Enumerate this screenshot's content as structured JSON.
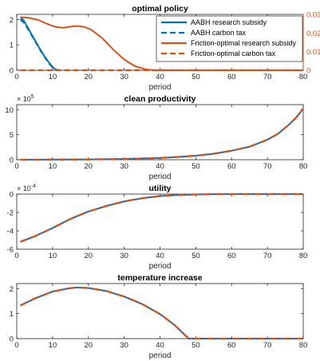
{
  "colors": {
    "blue": "#0072BD",
    "orange": "#D95319",
    "axis": "#262626"
  },
  "chart_data": [
    {
      "type": "line",
      "title": "optimal policy",
      "xlabel": "period",
      "xlim": [
        0,
        80
      ],
      "xticks": [
        "0",
        "10",
        "20",
        "30",
        "40",
        "50",
        "60",
        "70",
        "80"
      ],
      "ylim": [
        0,
        2.2
      ],
      "yticks": [
        "0",
        "1",
        "2"
      ],
      "y2lim": [
        0,
        0.03
      ],
      "y2ticks": [
        "0",
        "0.01",
        "0.02",
        "0.03"
      ],
      "legend": "top-right",
      "series": [
        {
          "name": "AABH research subsidy",
          "axis": "left",
          "style": "solid",
          "color": "#0072BD",
          "x": [
            1,
            2,
            3,
            4,
            5,
            6,
            7,
            8,
            9,
            10,
            11,
            12
          ],
          "y": [
            2.1,
            1.95,
            1.7,
            1.45,
            1.2,
            0.95,
            0.72,
            0.5,
            0.3,
            0.13,
            0.02,
            0
          ]
        },
        {
          "name": "AABH carbon tax",
          "axis": "left",
          "style": "dashed",
          "color": "#0072BD",
          "x": [
            1,
            2,
            3,
            4,
            5,
            6,
            7,
            8,
            9,
            10,
            11,
            12
          ],
          "y": [
            2.0,
            1.88,
            1.66,
            1.42,
            1.18,
            0.94,
            0.7,
            0.48,
            0.28,
            0.12,
            0.02,
            0
          ]
        },
        {
          "name": "Friction-optimal research subsidy",
          "axis": "right",
          "style": "solid",
          "color": "#D95319",
          "x": [
            1,
            3,
            6,
            9,
            11,
            13,
            15,
            17,
            19,
            21,
            24,
            27,
            30,
            33,
            36,
            38,
            40,
            50,
            60,
            70,
            80
          ],
          "y": [
            0.0285,
            0.0283,
            0.027,
            0.0245,
            0.0232,
            0.0228,
            0.0234,
            0.0238,
            0.0232,
            0.0215,
            0.017,
            0.011,
            0.0058,
            0.0022,
            0.0005,
            0.0001,
            0,
            0,
            0,
            0,
            0
          ]
        },
        {
          "name": "Friction-optimal carbon tax",
          "axis": "left",
          "style": "dashed",
          "color": "#D95319",
          "x": [
            1,
            80
          ],
          "y": [
            0,
            0
          ]
        }
      ]
    },
    {
      "type": "line",
      "title": "clean productivity",
      "xlabel": "period",
      "xlim": [
        0,
        80
      ],
      "xticks": [
        "0",
        "10",
        "20",
        "30",
        "40",
        "50",
        "60",
        "70",
        "80"
      ],
      "ylim": [
        0,
        11
      ],
      "yticks": [
        "0",
        "5",
        "10"
      ],
      "y_exponent": "× 10",
      "y_exponent_power": "5",
      "series": [
        {
          "name": "",
          "style": "solid",
          "color": "#0072BD",
          "x": [
            1,
            10,
            20,
            30,
            40,
            45,
            50,
            55,
            60,
            65,
            70,
            73,
            76,
            78,
            80
          ],
          "y": [
            0.01,
            0.02,
            0.06,
            0.15,
            0.35,
            0.55,
            0.8,
            1.2,
            1.8,
            2.6,
            4.0,
            5.2,
            7.0,
            8.4,
            10.2
          ]
        },
        {
          "name": "",
          "style": "dashdot",
          "color": "#D95319",
          "x": [
            1,
            10,
            20,
            30,
            40,
            45,
            50,
            55,
            60,
            65,
            70,
            73,
            76,
            78,
            80
          ],
          "y": [
            0.01,
            0.02,
            0.06,
            0.15,
            0.35,
            0.55,
            0.8,
            1.2,
            1.8,
            2.6,
            4.0,
            5.2,
            7.0,
            8.4,
            10.2
          ]
        }
      ]
    },
    {
      "type": "line",
      "title": "utility",
      "xlabel": "period",
      "xlim": [
        0,
        80
      ],
      "xticks": [
        "0",
        "10",
        "20",
        "30",
        "40",
        "50",
        "60",
        "70",
        "80"
      ],
      "ylim": [
        -6,
        0
      ],
      "yticks": [
        "-6",
        "-4",
        "-2",
        "0"
      ],
      "y_exponent": "× 10",
      "y_exponent_power": "-4",
      "series": [
        {
          "name": "",
          "style": "solid",
          "color": "#0072BD",
          "x": [
            1,
            5,
            10,
            15,
            20,
            25,
            30,
            35,
            40,
            45,
            50,
            55,
            60,
            70,
            80
          ],
          "y": [
            -5.2,
            -4.6,
            -3.7,
            -2.7,
            -1.9,
            -1.3,
            -0.8,
            -0.45,
            -0.22,
            -0.1,
            -0.04,
            -0.015,
            0,
            0,
            0
          ]
        },
        {
          "name": "",
          "style": "dashdot",
          "color": "#D95319",
          "x": [
            1,
            5,
            10,
            15,
            20,
            25,
            30,
            35,
            40,
            45,
            50,
            55,
            60,
            70,
            80
          ],
          "y": [
            -5.2,
            -4.6,
            -3.7,
            -2.7,
            -1.9,
            -1.3,
            -0.8,
            -0.45,
            -0.22,
            -0.1,
            -0.04,
            -0.015,
            0,
            0,
            0
          ]
        }
      ]
    },
    {
      "type": "line",
      "title": "temperature increase",
      "xlabel": "period",
      "xlim": [
        0,
        80
      ],
      "xticks": [
        "0",
        "10",
        "20",
        "30",
        "40",
        "50",
        "60",
        "70",
        "80"
      ],
      "ylim": [
        0,
        2.2
      ],
      "yticks": [
        "0",
        "1",
        "2"
      ],
      "series": [
        {
          "name": "",
          "style": "solid",
          "color": "#0072BD",
          "x": [
            1,
            5,
            10,
            15,
            17,
            20,
            25,
            30,
            35,
            40,
            44,
            46,
            48,
            50,
            60,
            70,
            80
          ],
          "y": [
            1.32,
            1.6,
            1.88,
            2.02,
            2.04,
            2.02,
            1.9,
            1.68,
            1.38,
            0.98,
            0.55,
            0.28,
            0,
            0,
            0,
            0,
            0
          ]
        },
        {
          "name": "",
          "style": "dashdot",
          "color": "#D95319",
          "x": [
            1,
            5,
            10,
            15,
            17,
            20,
            25,
            30,
            35,
            40,
            44,
            46,
            48,
            50,
            60,
            70,
            80
          ],
          "y": [
            1.32,
            1.6,
            1.88,
            2.02,
            2.04,
            2.02,
            1.9,
            1.68,
            1.38,
            0.98,
            0.55,
            0.28,
            0,
            0,
            0,
            0,
            0
          ]
        }
      ]
    }
  ]
}
